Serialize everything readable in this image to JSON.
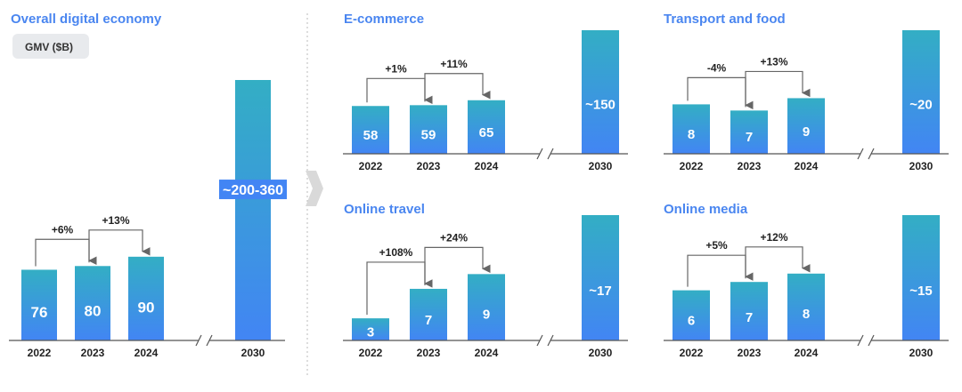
{
  "chart_data": [
    {
      "type": "bar",
      "title": "Overall digital economy",
      "unit_badge": "GMV ($B)",
      "categories": [
        "2022",
        "2023",
        "2024",
        "2030"
      ],
      "values": [
        76,
        80,
        90,
        280
      ],
      "value_labels": [
        "76",
        "80",
        "90",
        "~200-360"
      ],
      "growth": [
        {
          "from": 0,
          "to": 1,
          "label": "+6%"
        },
        {
          "from": 1,
          "to": 2,
          "label": "+13%"
        }
      ],
      "axis_break_before_last": true
    },
    {
      "type": "bar",
      "title": "E-commerce",
      "categories": [
        "2022",
        "2023",
        "2024",
        "2030"
      ],
      "values": [
        58,
        59,
        65,
        150
      ],
      "value_labels": [
        "58",
        "59",
        "65",
        "~150"
      ],
      "growth": [
        {
          "from": 0,
          "to": 1,
          "label": "+1%"
        },
        {
          "from": 1,
          "to": 2,
          "label": "+11%"
        }
      ],
      "axis_break_before_last": true
    },
    {
      "type": "bar",
      "title": "Transport and food",
      "categories": [
        "2022",
        "2023",
        "2024",
        "2030"
      ],
      "values": [
        8,
        7,
        9,
        20
      ],
      "value_labels": [
        "8",
        "7",
        "9",
        "~20"
      ],
      "growth": [
        {
          "from": 0,
          "to": 1,
          "label": "-4%"
        },
        {
          "from": 1,
          "to": 2,
          "label": "+13%"
        }
      ],
      "axis_break_before_last": true
    },
    {
      "type": "bar",
      "title": "Online travel",
      "categories": [
        "2022",
        "2023",
        "2024",
        "2030"
      ],
      "values": [
        3,
        7,
        9,
        17
      ],
      "value_labels": [
        "3",
        "7",
        "9",
        "~17"
      ],
      "growth": [
        {
          "from": 0,
          "to": 1,
          "label": "+108%"
        },
        {
          "from": 1,
          "to": 2,
          "label": "+24%"
        }
      ],
      "axis_break_before_last": true
    },
    {
      "type": "bar",
      "title": "Online media",
      "categories": [
        "2022",
        "2023",
        "2024",
        "2030"
      ],
      "values": [
        6,
        7,
        8,
        15
      ],
      "value_labels": [
        "6",
        "7",
        "8",
        "~15"
      ],
      "growth": [
        {
          "from": 0,
          "to": 1,
          "label": "+5%"
        },
        {
          "from": 1,
          "to": 2,
          "label": "+12%"
        }
      ],
      "axis_break_before_last": true
    }
  ],
  "colors": {
    "bar_top": "#33aec4",
    "bar_bottom": "#4285f4",
    "title": "#4a86f0",
    "axis": "#555555",
    "connector": "#666666",
    "badge_bg": "#e8eaed",
    "divider": "#bbbbbb",
    "chevron": "#d9d9d9"
  }
}
